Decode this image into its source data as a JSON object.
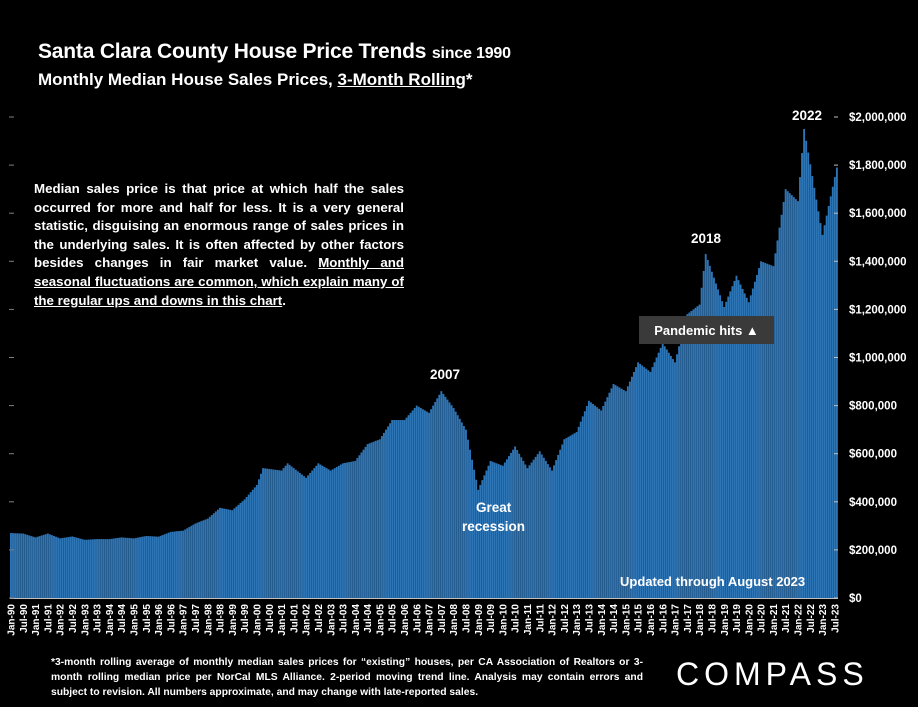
{
  "header": {
    "title": "Santa Clara County House Price Trends",
    "title_suffix": "since 1990",
    "subtitle_prefix": "Monthly Median House Sales Prices, ",
    "subtitle_underlined": "3-Month Rolling",
    "subtitle_suffix": "*"
  },
  "note": {
    "plain": "Median sales price is that price at which half the sales occurred for more and half for less. It is a very general statistic, disguising an enormous range of sales prices in the underlying sales. It is often affected by other factors besides changes in fair market value. ",
    "underlined": "Monthly and seasonal fluctuations are common, which explain many of the regular ups and downs in this chart",
    "end": "."
  },
  "annotations": {
    "y2007": "2007",
    "y2018": "2018",
    "y2022": "2022",
    "recession_line1": "Great",
    "recession_line2": "recession",
    "pandemic": "Pandemic hits ▲",
    "updated": "Updated through August 2023"
  },
  "footnote": "*3-month rolling average of monthly median sales prices for “existing” houses, per CA Association of Realtors or 3-month rolling median price per NorCal MLS Alliance. 2-period moving trend line. Analysis may contain errors and subject to revision. All numbers approximate, and may change with late-reported sales.",
  "logo": "COMPASS",
  "colors": {
    "background": "#000000",
    "bar": "#2e75b6",
    "pandemic_box": "#3a3a3a",
    "text": "#ffffff"
  },
  "chart_data": {
    "type": "bar",
    "title": "Santa Clara County House Price Trends since 1990",
    "subtitle": "Monthly Median House Sales Prices, 3-Month Rolling*",
    "x_start": "Jan-90",
    "x_end": "Aug-23",
    "x_frequency": "monthly",
    "x_tick_labels": [
      "Jan-90",
      "Jul-90",
      "Jan-91",
      "Jul-91",
      "Jan-92",
      "Jul-92",
      "Jan-93",
      "Jul-93",
      "Jan-94",
      "Jul-94",
      "Jan-95",
      "Jul-95",
      "Jan-96",
      "Jul-96",
      "Jan-97",
      "Jul-97",
      "Jan-98",
      "Jul-98",
      "Jan-99",
      "Jul-99",
      "Jan-00",
      "Jul-00",
      "Jan-01",
      "Jul-01",
      "Jan-02",
      "Jul-02",
      "Jan-03",
      "Jul-03",
      "Jan-04",
      "Jul-04",
      "Jan-05",
      "Jul-05",
      "Jan-06",
      "Jul-06",
      "Jan-07",
      "Jul-07",
      "Jan-08",
      "Jul-08",
      "Jan-09",
      "Jul-09",
      "Jan-10",
      "Jul-10",
      "Jan-11",
      "Jul-11",
      "Jan-12",
      "Jul-12",
      "Jan-13",
      "Jul-13",
      "Jan-14",
      "Jul-14",
      "Jan-15",
      "Jul-15",
      "Jan-16",
      "Jul-16",
      "Jan-17",
      "Jul-17",
      "Jan-18",
      "Jul-18",
      "Jan-19",
      "Jul-19",
      "Jan-20",
      "Jul-20",
      "Jan-21",
      "Jul-21",
      "Jan-22",
      "Jul-22",
      "Jan-23",
      "Jul-23"
    ],
    "y_tick_labels": [
      "$0",
      "$200,000",
      "$400,000",
      "$600,000",
      "$800,000",
      "$1,000,000",
      "$1,200,000",
      "$1,400,000",
      "$1,600,000",
      "$1,800,000",
      "$2,000,000"
    ],
    "ylim": [
      0,
      2000000
    ],
    "y_axis_position": "right",
    "grid": false,
    "anchor_values": [
      [
        "Jan-90",
        270000
      ],
      [
        "Jul-90",
        268000
      ],
      [
        "Jan-91",
        252000
      ],
      [
        "Jul-91",
        268000
      ],
      [
        "Jan-92",
        248000
      ],
      [
        "Jul-92",
        256000
      ],
      [
        "Jan-93",
        242000
      ],
      [
        "Jul-93",
        245000
      ],
      [
        "Jan-94",
        245000
      ],
      [
        "Jul-94",
        252000
      ],
      [
        "Jan-95",
        248000
      ],
      [
        "Jul-95",
        258000
      ],
      [
        "Jan-96",
        255000
      ],
      [
        "Jul-96",
        275000
      ],
      [
        "Jan-97",
        280000
      ],
      [
        "Jul-97",
        310000
      ],
      [
        "Jan-98",
        330000
      ],
      [
        "Jul-98",
        375000
      ],
      [
        "Jan-99",
        365000
      ],
      [
        "Jul-99",
        410000
      ],
      [
        "Jan-00",
        470000
      ],
      [
        "Apr-00",
        540000
      ],
      [
        "Jan-01",
        530000
      ],
      [
        "Apr-01",
        560000
      ],
      [
        "Jan-02",
        500000
      ],
      [
        "Jul-02",
        560000
      ],
      [
        "Jan-03",
        530000
      ],
      [
        "Jul-03",
        560000
      ],
      [
        "Jan-04",
        570000
      ],
      [
        "Jul-04",
        640000
      ],
      [
        "Jan-05",
        660000
      ],
      [
        "Jul-05",
        740000
      ],
      [
        "Jan-06",
        740000
      ],
      [
        "Jul-06",
        800000
      ],
      [
        "Jan-07",
        770000
      ],
      [
        "Jul-07",
        860000
      ],
      [
        "Jan-08",
        790000
      ],
      [
        "Jul-08",
        700000
      ],
      [
        "Jan-09",
        450000
      ],
      [
        "Jul-09",
        570000
      ],
      [
        "Jan-10",
        550000
      ],
      [
        "Jul-10",
        630000
      ],
      [
        "Jan-11",
        540000
      ],
      [
        "Jul-11",
        610000
      ],
      [
        "Jan-12",
        530000
      ],
      [
        "Jul-12",
        660000
      ],
      [
        "Jan-13",
        690000
      ],
      [
        "Jul-13",
        820000
      ],
      [
        "Jan-14",
        780000
      ],
      [
        "Jul-14",
        890000
      ],
      [
        "Jan-15",
        860000
      ],
      [
        "Jul-15",
        980000
      ],
      [
        "Jan-16",
        940000
      ],
      [
        "Jul-16",
        1060000
      ],
      [
        "Jan-17",
        980000
      ],
      [
        "Jul-17",
        1180000
      ],
      [
        "Jan-18",
        1220000
      ],
      [
        "Apr-18",
        1430000
      ],
      [
        "Jan-19",
        1210000
      ],
      [
        "Jul-19",
        1340000
      ],
      [
        "Jan-20",
        1230000
      ],
      [
        "Jul-20",
        1400000
      ],
      [
        "Jan-21",
        1380000
      ],
      [
        "Jul-21",
        1700000
      ],
      [
        "Jan-22",
        1650000
      ],
      [
        "Apr-22",
        1950000
      ],
      [
        "Jan-23",
        1510000
      ],
      [
        "Aug-23",
        1790000
      ]
    ]
  }
}
